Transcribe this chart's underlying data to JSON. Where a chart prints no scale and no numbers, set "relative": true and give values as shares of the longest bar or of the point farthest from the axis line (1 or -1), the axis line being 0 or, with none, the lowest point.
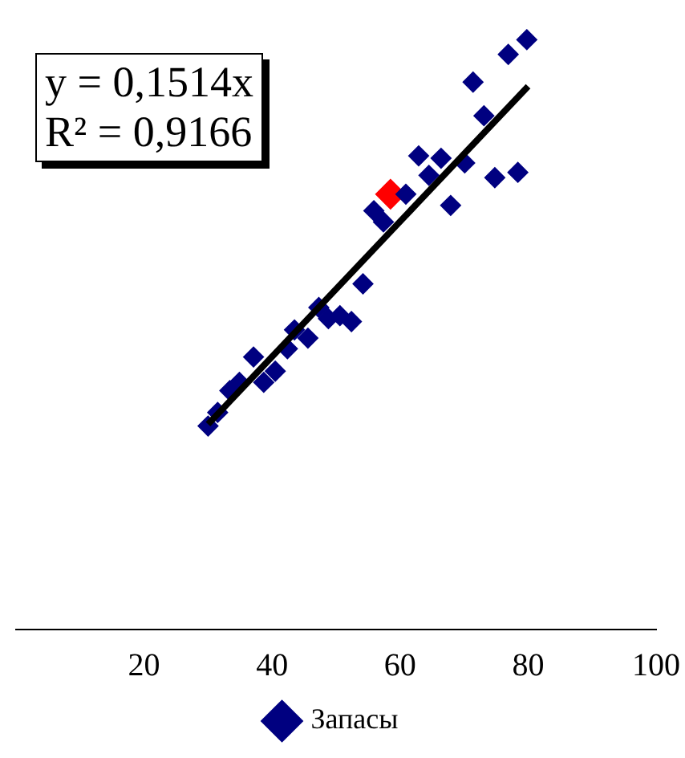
{
  "chart_data": {
    "type": "scatter",
    "relative": true,
    "xlim": [
      0,
      100
    ],
    "xticks": [
      20,
      40,
      60,
      80,
      100
    ],
    "tick_labels": "x",
    "grid": false,
    "legend": "bottom",
    "marker": "diamond",
    "annotations": [
      "y = 0,1514x",
      "R² = 0,9166"
    ],
    "series": [
      {
        "name": "Запасы",
        "color": "#000080",
        "x": [
          30.0,
          31.5,
          33.4,
          34.9,
          37.1,
          38.7,
          40.5,
          42.4,
          43.5,
          45.6,
          47.3,
          48.8,
          50.6,
          52.4,
          54.2,
          55.9,
          57.4,
          60.9,
          62.9,
          64.5,
          66.4,
          67.9,
          70.1,
          71.4,
          73.1,
          74.8,
          76.9,
          78.4,
          79.8
        ],
        "values": [
          0.345,
          0.368,
          0.405,
          0.419,
          0.462,
          0.419,
          0.438,
          0.476,
          0.508,
          0.494,
          0.546,
          0.527,
          0.532,
          0.522,
          0.586,
          0.71,
          0.691,
          0.738,
          0.803,
          0.77,
          0.799,
          0.719,
          0.791,
          0.928,
          0.871,
          0.766,
          0.975,
          0.775,
          1.0
        ]
      },
      {
        "color": "#ff0000",
        "x": [
          58.5
        ],
        "values": [
          0.738
        ]
      },
      {
        "type": "line",
        "color": "#000000",
        "x": [
          30,
          80
        ],
        "values": [
          0.348,
          0.921
        ],
        "marker": "none"
      }
    ]
  }
}
